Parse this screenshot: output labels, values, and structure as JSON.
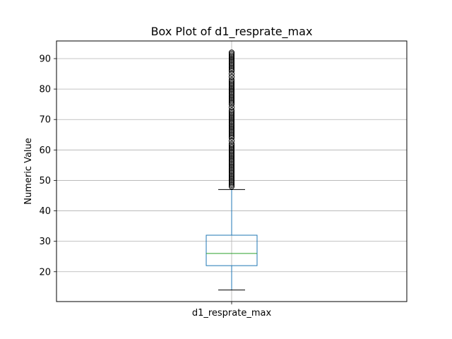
{
  "chart_data": {
    "type": "box",
    "title": "Box Plot of d1_resprate_max",
    "xlabel": "",
    "ylabel": "Numeric Value",
    "categories": [
      "d1_resprate_max"
    ],
    "ylim": [
      10.2,
      95.8
    ],
    "yticks": [
      20,
      30,
      40,
      50,
      60,
      70,
      80,
      90
    ],
    "grid": true,
    "boxes": [
      {
        "name": "d1_resprate_max",
        "whisker_low": 14,
        "q1": 22,
        "median": 26,
        "q3": 32,
        "whisker_high": 47,
        "outliers": [
          48,
          48.5,
          49,
          49.5,
          50,
          50.5,
          51,
          51.5,
          52,
          52.5,
          53,
          53.5,
          54,
          54.5,
          55,
          55.5,
          56,
          56.5,
          57,
          57.5,
          58,
          58.5,
          59,
          59.5,
          60,
          60.5,
          61,
          61.5,
          62,
          63,
          64,
          64.5,
          65,
          65.5,
          66,
          66.5,
          67,
          67.5,
          68,
          68.5,
          69,
          69.5,
          70,
          70.5,
          71,
          71.5,
          72,
          72.5,
          73,
          74,
          75,
          75.5,
          76,
          76.5,
          77,
          77.5,
          78,
          78.5,
          79,
          79.5,
          80,
          80.5,
          81,
          81.5,
          82,
          82.5,
          83,
          84,
          85,
          86,
          86.5,
          87,
          87.5,
          88,
          88.5,
          89,
          89.5,
          90,
          90.5,
          91,
          91.5,
          92
        ]
      }
    ],
    "colors": {
      "box": "#1f77b4",
      "median": "#2ca02c",
      "whisker_cap": "#000000",
      "outlier": "#000000",
      "grid": "#b0b0b0"
    }
  }
}
